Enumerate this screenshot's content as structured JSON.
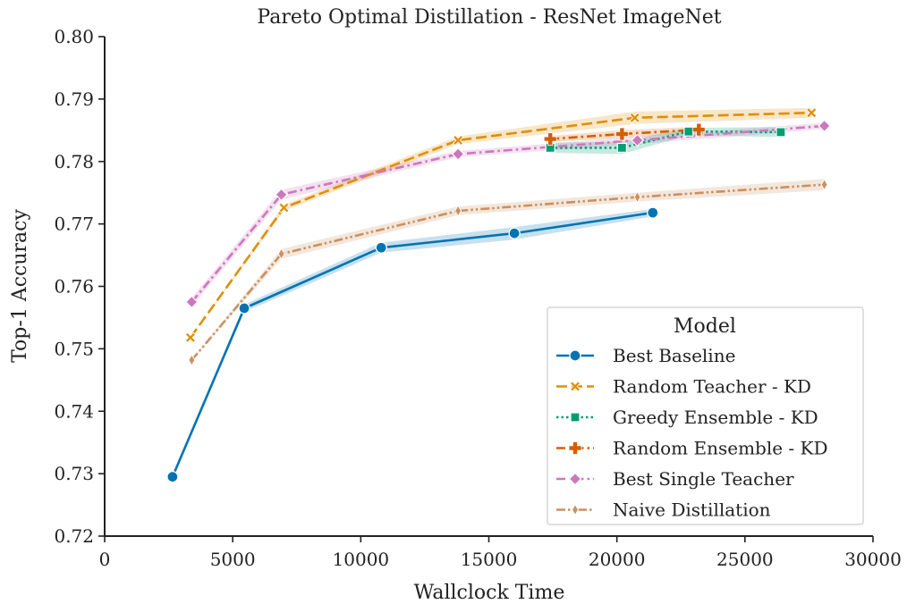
{
  "chart_data": {
    "type": "line",
    "title": "Pareto Optimal Distillation - ResNet ImageNet",
    "xlabel": "Wallclock Time",
    "ylabel": "Top-1 Accuracy",
    "xlim": [
      0,
      30000
    ],
    "ylim": [
      0.72,
      0.8
    ],
    "xticks": [
      0,
      5000,
      10000,
      15000,
      20000,
      25000,
      30000
    ],
    "yticks": [
      0.72,
      0.73,
      0.74,
      0.75,
      0.76,
      0.77,
      0.78,
      0.79,
      0.8
    ],
    "xtick_labels": [
      "0",
      "5000",
      "10000",
      "15000",
      "20000",
      "25000",
      "30000"
    ],
    "ytick_labels": [
      "0.72",
      "0.73",
      "0.74",
      "0.75",
      "0.76",
      "0.77",
      "0.78",
      "0.79",
      "0.80"
    ],
    "grid": false,
    "legend": {
      "title": "Model",
      "position": "lower-right"
    },
    "series": [
      {
        "name": "Best Baseline",
        "color": "#0173b2",
        "marker": "circle",
        "dash": "solid",
        "x": [
          2650,
          5450,
          10800,
          16000,
          21400
        ],
        "y": [
          0.7295,
          0.7565,
          0.7662,
          0.7685,
          0.7718
        ],
        "band": [
          0,
          0.0006,
          0.0008,
          0.001,
          0.0006
        ]
      },
      {
        "name": "Random Teacher - KD",
        "color": "#de8f05",
        "marker": "x",
        "dash": "dashed",
        "x": [
          3350,
          7000,
          13800,
          20700,
          27600
        ],
        "y": [
          0.7518,
          0.7726,
          0.7834,
          0.787,
          0.7878
        ],
        "band": [
          0,
          0.0005,
          0.0006,
          0.001,
          0.0008
        ]
      },
      {
        "name": "Greedy Ensemble - KD",
        "color": "#029e73",
        "marker": "square",
        "dash": "dotted",
        "x": [
          17400,
          20200,
          22800,
          26400
        ],
        "y": [
          0.7822,
          0.7822,
          0.7848,
          0.7847
        ],
        "band": [
          0.0008,
          0.001,
          0.0006,
          0.0008
        ]
      },
      {
        "name": "Random Ensemble - KD",
        "color": "#d55e00",
        "marker": "plus",
        "dash": "dashdot",
        "x": [
          17400,
          20200,
          23200
        ],
        "y": [
          0.7836,
          0.7844,
          0.7851
        ],
        "band": [
          0.0005,
          0.0006,
          0.0005
        ]
      },
      {
        "name": "Best Single Teacher",
        "color": "#cc78bc",
        "marker": "diamond",
        "dash": "dashdot",
        "x": [
          3400,
          6900,
          13800,
          20800,
          28100
        ],
        "y": [
          0.7575,
          0.7747,
          0.7812,
          0.7834,
          0.7857
        ],
        "band": [
          0.0007,
          0.0008,
          0.0005,
          0.0006,
          0.0005
        ]
      },
      {
        "name": "Naive Distillation",
        "color": "#ca9161",
        "marker": "thin-diamond",
        "dash": "dashdotdot",
        "x": [
          3400,
          6900,
          13800,
          20800,
          28100
        ],
        "y": [
          0.7482,
          0.7652,
          0.7721,
          0.7743,
          0.7763
        ],
        "band": [
          0,
          0.0008,
          0.0007,
          0.0007,
          0.0009
        ]
      }
    ]
  }
}
